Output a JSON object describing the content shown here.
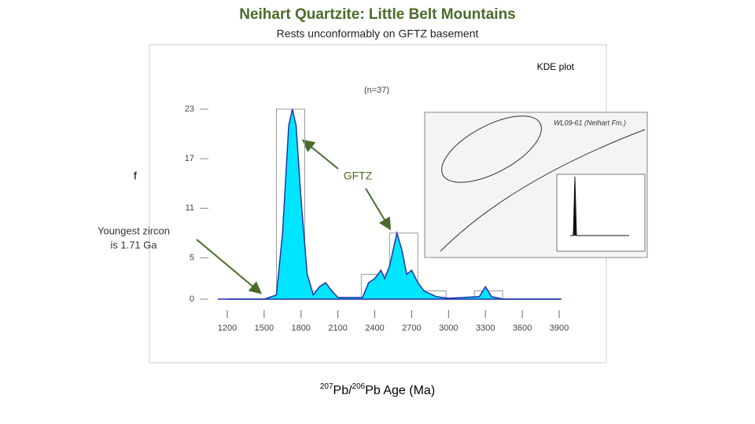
{
  "title": "Neihart Quartzite: Little Belt Mountains",
  "subtitle": "Rests unconformably on GFTZ basement",
  "annotations": {
    "plot_label": "KDE plot",
    "left_letter": "f",
    "gftz": "GFTZ",
    "youngest": [
      "Youngest zircon",
      "is 1.71 Ga"
    ],
    "inset_title": "WL09-61 (Neihart Fm.)"
  },
  "chart_data": {
    "type": "histogram",
    "n_label": "(n=37)",
    "bins": [
      1600,
      1830,
      2060,
      2290,
      2520,
      2750,
      2980,
      3210,
      3440
    ],
    "counts": [
      23,
      1,
      0,
      3,
      8,
      1,
      0,
      1
    ],
    "bar_color": "#999999",
    "kde": {
      "color": "#00e5ff",
      "x": [
        1200,
        1500,
        1600,
        1650,
        1700,
        1730,
        1760,
        1800,
        1850,
        1900,
        1950,
        2000,
        2050,
        2100,
        2300,
        2350,
        2400,
        2450,
        2480,
        2520,
        2580,
        2620,
        2660,
        2700,
        2750,
        2800,
        2900,
        3000,
        3250,
        3300,
        3350,
        3450,
        3900
      ],
      "values": [
        0,
        0,
        0.5,
        8,
        21,
        23,
        21,
        12,
        3,
        0.5,
        1.5,
        2,
        1,
        0.2,
        0.2,
        2,
        2.5,
        3.5,
        2.5,
        4,
        8,
        6,
        3,
        3.5,
        2,
        1,
        0.3,
        0.1,
        0.3,
        1.5,
        0.3,
        0,
        0
      ]
    },
    "xlim": [
      1200,
      3900
    ],
    "xticks": [
      1200,
      1500,
      1800,
      2100,
      2400,
      2700,
      3000,
      3300,
      3600,
      3900
    ],
    "ylim": [
      0,
      23
    ],
    "yticks": [
      0,
      5,
      11,
      17,
      23
    ],
    "x_label": [
      "207",
      "Pb/",
      "206",
      "Pb Age (Ma)"
    ]
  }
}
